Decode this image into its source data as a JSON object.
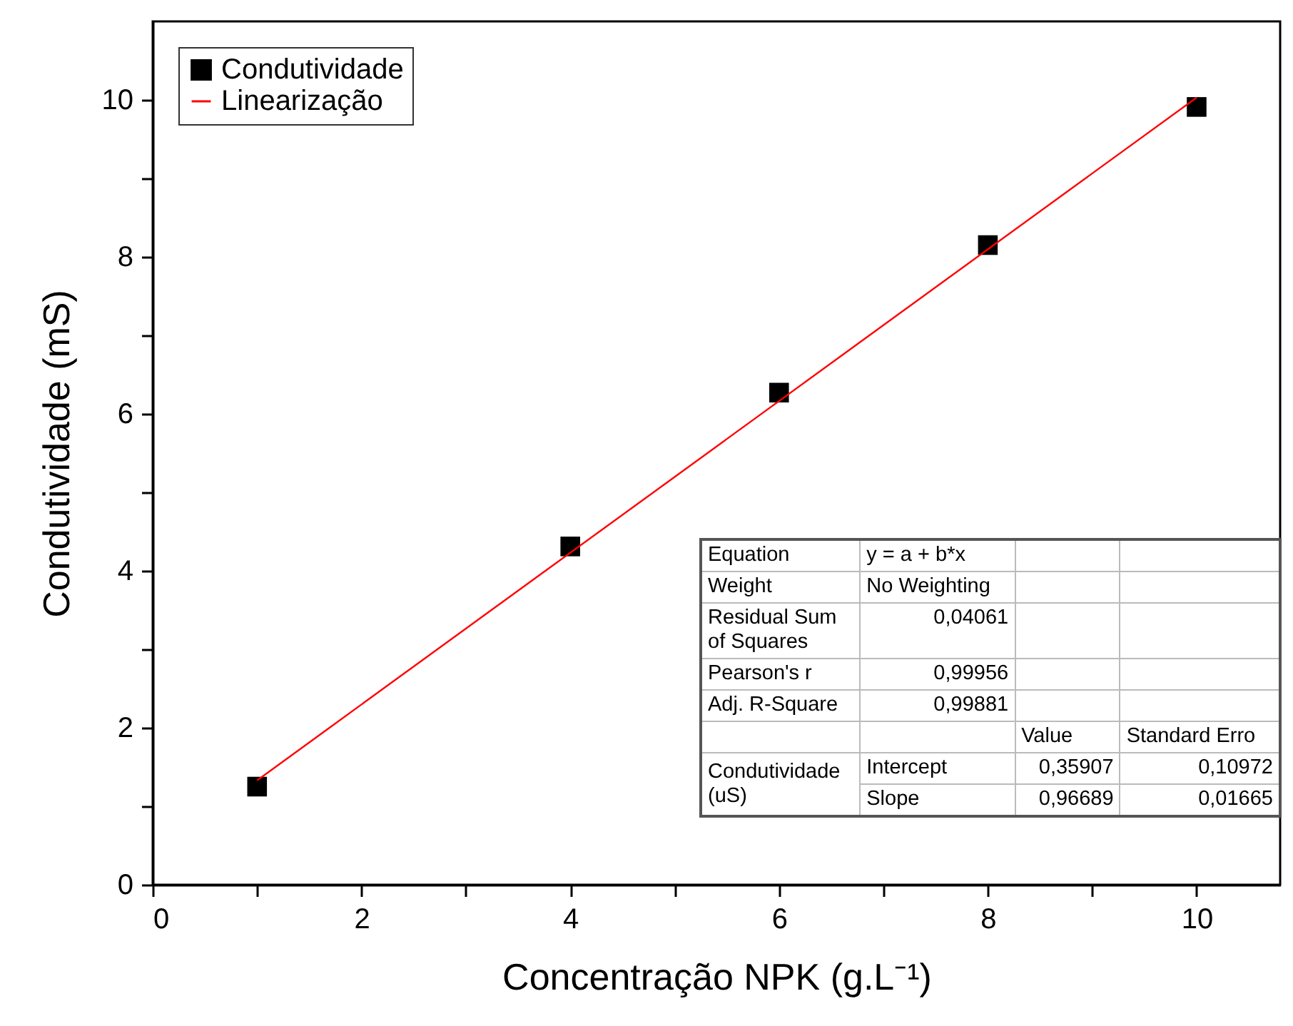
{
  "chart_data": {
    "type": "scatter",
    "xlabel": "Concentração NPK (g.L⁻¹)",
    "ylabel": "Condutividade (mS)",
    "xlim": [
      0,
      10.8
    ],
    "ylim": [
      0,
      11
    ],
    "xticks": [
      0,
      {
        "value": 1,
        "label": null
      },
      2,
      {
        "value": 3,
        "label": null
      },
      4,
      {
        "value": 5,
        "label": null
      },
      6,
      {
        "value": 7,
        "label": null
      },
      8,
      {
        "value": 9,
        "label": null
      },
      10
    ],
    "yticks": [
      0,
      {
        "value": 1,
        "label": null
      },
      2,
      {
        "value": 3,
        "label": null
      },
      4,
      {
        "value": 5,
        "label": null
      },
      6,
      {
        "value": 7,
        "label": null
      },
      8,
      {
        "value": 9,
        "label": null
      },
      10
    ],
    "grid": false,
    "legend": "top left",
    "series": [
      {
        "name": "Condutividade",
        "marker": "square",
        "color": "#000000",
        "x": [
          1,
          4,
          6,
          8,
          10
        ],
        "values": [
          1.25,
          4.31,
          6.27,
          8.15,
          9.91
        ]
      },
      {
        "name": "Linearização",
        "type": "line",
        "color": "#ff0000",
        "x": [
          1,
          10
        ],
        "values": [
          1.33,
          10.03
        ]
      }
    ],
    "annotations": [
      "Equation",
      "y = a + b*x",
      "Weight",
      "No Weighting",
      "Residual Sum of Squares",
      "0,04061",
      "Pearson's r",
      "0,99956",
      "Adj. R-Square",
      "0,99881",
      "Value",
      "Standard Erro",
      "Condutividade (uS)",
      "Intercept",
      "0,35907",
      "0,10972",
      "Slope",
      "0,96689",
      "0,01665"
    ]
  }
}
